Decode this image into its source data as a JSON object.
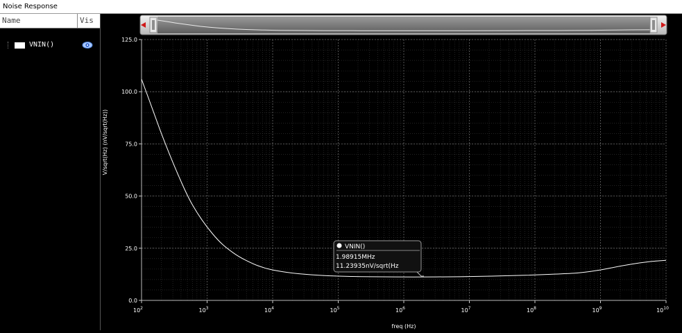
{
  "window": {
    "title": "Noise Response"
  },
  "sidebar": {
    "columns": {
      "name": "Name",
      "vis": "Vis"
    },
    "items": [
      {
        "label": "VNIN()",
        "color": "#ffffff",
        "icon": "eye-icon"
      }
    ]
  },
  "scroller": {
    "left_arrow": "arrow-left-icon",
    "right_arrow": "arrow-right-icon"
  },
  "marker": {
    "series": "VNIN()",
    "x_label": "1.98915MHz",
    "y_label": "11.23935nV/sqrt(Hz"
  },
  "chart_data": {
    "type": "line",
    "x_scale": "log",
    "xlabel": "freq (Hz)",
    "ylabel": "V/sqrt(Hz) (nV/sqrt(Hz))",
    "xlim": [
      100,
      10000000000
    ],
    "ylim": [
      0,
      125
    ],
    "x_ticks": [
      {
        "value": 100,
        "base": "10",
        "exp": "2"
      },
      {
        "value": 1000,
        "base": "10",
        "exp": "3"
      },
      {
        "value": 10000,
        "base": "10",
        "exp": "4"
      },
      {
        "value": 100000,
        "base": "10",
        "exp": "5"
      },
      {
        "value": 1000000,
        "base": "10",
        "exp": "6"
      },
      {
        "value": 10000000,
        "base": "10",
        "exp": "7"
      },
      {
        "value": 100000000,
        "base": "10",
        "exp": "8"
      },
      {
        "value": 1000000000,
        "base": "10",
        "exp": "9"
      },
      {
        "value": 10000000000,
        "base": "10",
        "exp": "10"
      }
    ],
    "y_ticks": [
      {
        "value": 0,
        "label": "0.0"
      },
      {
        "value": 25,
        "label": "25.0"
      },
      {
        "value": 50,
        "label": "50.0"
      },
      {
        "value": 75,
        "label": "75.0"
      },
      {
        "value": 100,
        "label": "100.0"
      },
      {
        "value": 125,
        "label": "125.0"
      }
    ],
    "grid": true,
    "series": [
      {
        "name": "VNIN()",
        "color": "#ffffff",
        "x": [
          100,
          150,
          200,
          300,
          500,
          700,
          1000,
          1500,
          2000,
          3000,
          5000,
          7000,
          10000,
          20000,
          50000,
          100000,
          200000,
          500000,
          1000000,
          1989150,
          5000000,
          10000000,
          50000000,
          100000000,
          300000000,
          500000000,
          1000000000,
          2000000000,
          5000000000,
          10000000000
        ],
        "y": [
          106,
          91,
          80,
          66,
          50,
          42,
          35,
          28.5,
          25,
          21,
          17.5,
          15.8,
          14.5,
          13,
          12,
          11.6,
          11.4,
          11.3,
          11.25,
          11.24,
          11.3,
          11.4,
          11.9,
          12.2,
          12.8,
          13.2,
          14.5,
          16.5,
          18.5,
          19.2
        ]
      }
    ]
  }
}
